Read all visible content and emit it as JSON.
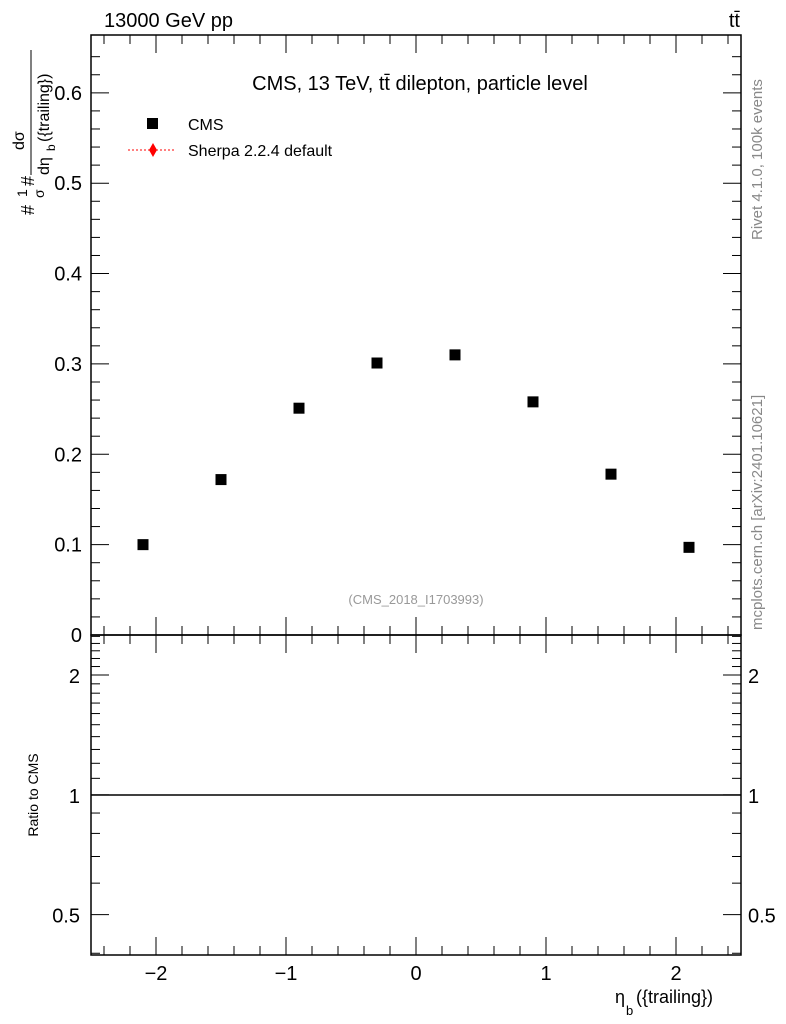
{
  "header": {
    "left": "13000 GeV pp",
    "right": "tt̄"
  },
  "side_labels": {
    "rivet": "Rivet 4.1.0,  100k events",
    "mcplots": "mcplots.cern.ch [arXiv:2401.10621]"
  },
  "chart_data": {
    "type": "scatter",
    "title": "CMS, 13 TeV, tt̄ dilepton, particle level",
    "analysis_label": "(CMS_2018_I1703993)",
    "ylabel": "#frac{1}{σ}#frac{dσ}{dη_b({trailing})}",
    "ylabel_parts": {
      "frac1": "1",
      "sigma": "σ",
      "hash": "#",
      "dsigma": "dσ",
      "deta": "dη",
      "sub": "b",
      "paren": "({trailing})"
    },
    "xlabel": "η",
    "xlabel_sub": "b",
    "xlabel_rest": "({trailing})",
    "xlim": [
      -2.5,
      2.5
    ],
    "ylim": [
      0,
      0.664
    ],
    "x_ticks": [
      -2,
      -1,
      0,
      1,
      2
    ],
    "x_tick_labels": [
      "−2",
      "−1",
      "0",
      "1",
      "2"
    ],
    "y_ticks": [
      0,
      0.1,
      0.2,
      0.3,
      0.4,
      0.5,
      0.6
    ],
    "y_tick_labels": [
      "0",
      "0.1",
      "0.2",
      "0.3",
      "0.4",
      "0.5",
      "0.6"
    ],
    "legend": [
      {
        "name": "CMS",
        "color": "#000000",
        "marker": "square"
      },
      {
        "name": "Sherpa 2.2.4 default",
        "color": "#ff0000",
        "marker": "diamond",
        "line": "dotted"
      }
    ],
    "legend_position": "top-left",
    "series": [
      {
        "name": "CMS",
        "x": [
          -2.1,
          -1.5,
          -0.9,
          -0.3,
          0.3,
          0.9,
          1.5,
          2.1
        ],
        "y": [
          0.1,
          0.172,
          0.251,
          0.301,
          0.31,
          0.258,
          0.178,
          0.097
        ]
      }
    ],
    "ratio": {
      "ylabel": "Ratio to CMS",
      "scale": "log",
      "ylim": [
        0.396,
        2.52
      ],
      "y_ticks": [
        0.5,
        1,
        2
      ],
      "y_tick_labels": [
        "0.5",
        "1",
        "2"
      ],
      "reference": 1
    }
  }
}
